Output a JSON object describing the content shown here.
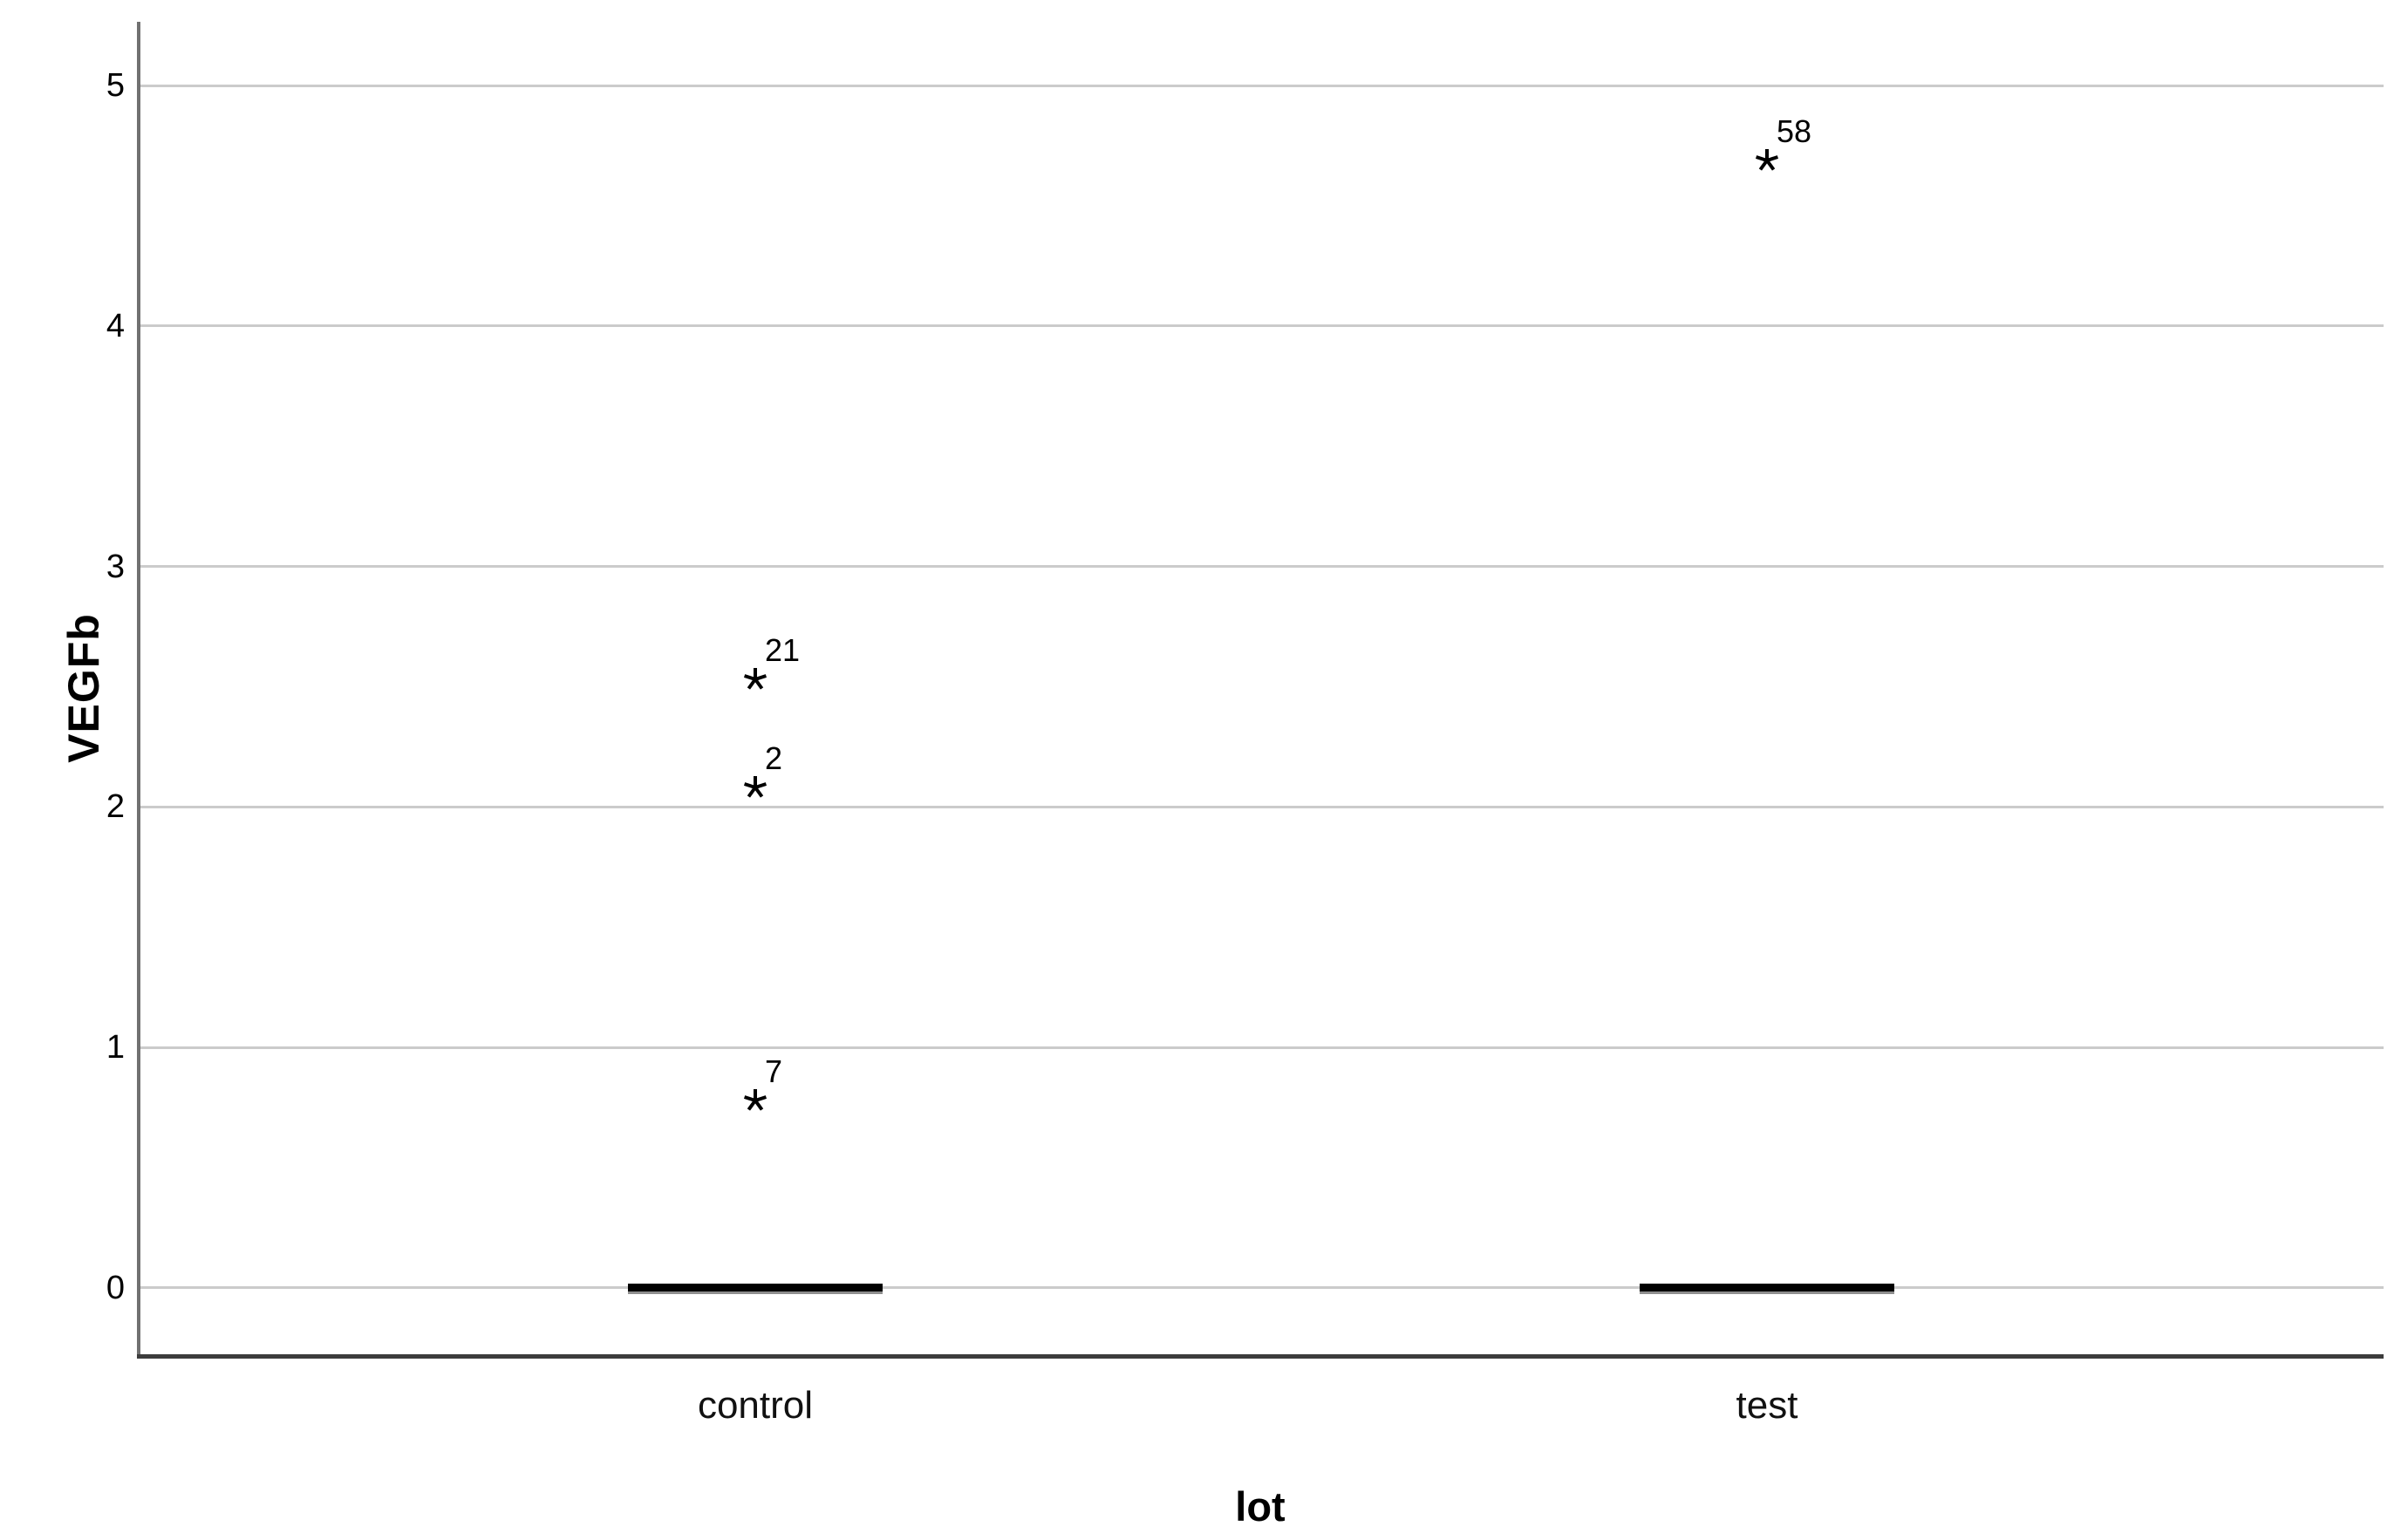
{
  "chart_data": {
    "type": "boxplot",
    "title": "",
    "xlabel": "lot",
    "ylabel": "VEGFb",
    "categories": [
      "control",
      "test"
    ],
    "y_ticks": [
      0,
      1,
      2,
      3,
      4,
      5
    ],
    "ylim": [
      -0.276,
      5.265
    ],
    "grid": "horizontal-only",
    "legend": "none",
    "series": [
      {
        "category": "control",
        "median": 0,
        "q1": 0,
        "q3": 0,
        "whisker_low": 0,
        "whisker_high": 0,
        "box_collapsed_at_zero": true,
        "extreme_outliers": [
          {
            "case": "21",
            "value": 2.53
          },
          {
            "case": "2",
            "value": 2.08
          },
          {
            "case": "7",
            "value": 0.78
          }
        ]
      },
      {
        "category": "test",
        "median": 0,
        "q1": 0,
        "q3": 0,
        "whisker_low": 0,
        "whisker_high": 0,
        "box_collapsed_at_zero": true,
        "extreme_outliers": [
          {
            "case": "58",
            "value": 4.69
          }
        ]
      }
    ],
    "marker_glyph": "asterisk-star",
    "colors": {
      "background": "#ffffff",
      "gridline": "#cbcbcb",
      "y_axis_line": "#717171",
      "x_axis_line": "#3c3c3c",
      "box": "#000000",
      "box_shadow": "#8f8f8f",
      "text": "#000000"
    }
  }
}
